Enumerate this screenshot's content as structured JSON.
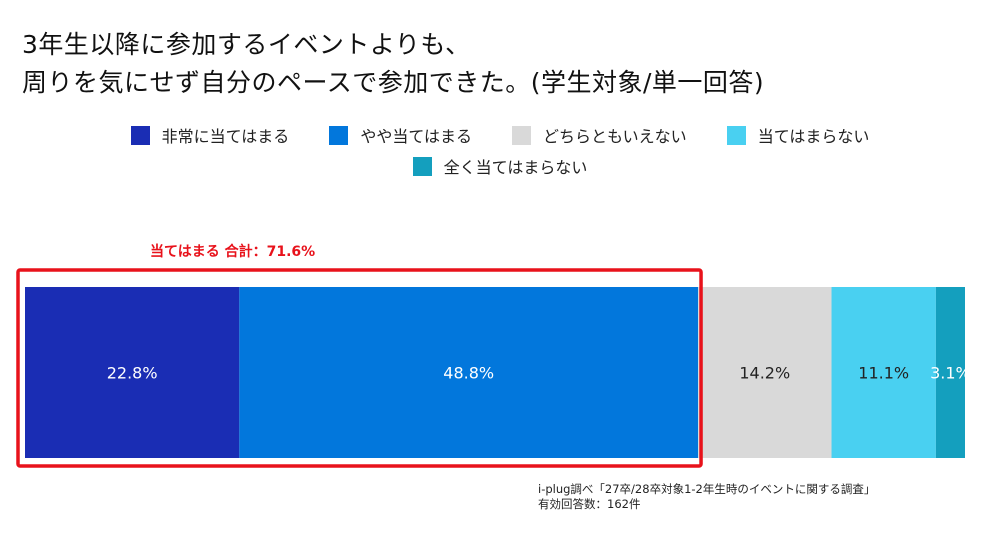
{
  "title_lines": [
    "3年生以降に参加するイベントよりも、",
    "周りを気にせず自分のペースで参加できた。(学生対象/単一回答)"
  ],
  "chart_data": {
    "type": "bar",
    "orientation": "horizontal-stacked-100",
    "title": "3年生以降に参加するイベントよりも、周りを気にせず自分のペースで参加できた。(学生対象/単一回答)",
    "legend_position": "top",
    "series": [
      {
        "name": "非常に当てはまる",
        "value": 22.8,
        "label": "22.8%",
        "color": "#1a2db4",
        "label_color": "#ffffff"
      },
      {
        "name": "やや当てはまる",
        "value": 48.8,
        "label": "48.8%",
        "color": "#0277dc",
        "label_color": "#ffffff"
      },
      {
        "name": "どちらともいえない",
        "value": 14.2,
        "label": "14.2%",
        "color": "#d9d9d9",
        "label_color": "#222222"
      },
      {
        "name": "当てはまらない",
        "value": 11.1,
        "label": "11.1%",
        "color": "#49d0f1",
        "label_color": "#222222"
      },
      {
        "name": "全く当てはまらない",
        "value": 3.1,
        "label": "3.1%",
        "color": "#149fbe",
        "label_color": "#ffffff"
      }
    ],
    "highlight": {
      "label": "当てはまる 合計：71.6%",
      "value": 71.6,
      "color": "#e8121b"
    }
  },
  "source_lines": [
    "i-plug調べ「27卒/28卒対象1-2年生時のイベントに関する調査」",
    "有効回答数：162件"
  ]
}
